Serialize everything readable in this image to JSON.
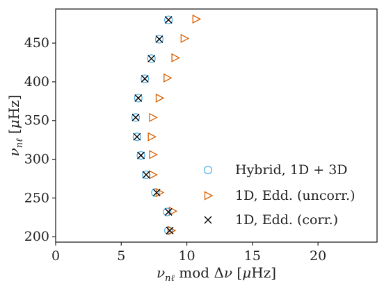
{
  "chart_data": {
    "type": "scatter",
    "xlabel": "νnℓ mod Δν [μHz]",
    "ylabel": "νnℓ [μHz]",
    "xlim": [
      0,
      24.5
    ],
    "ylim": [
      193,
      494
    ],
    "xticks": [
      "0",
      "5",
      "10",
      "15",
      "20"
    ],
    "yticks": [
      "200",
      "250",
      "300",
      "350",
      "400",
      "450"
    ],
    "legend_position": "lower-right",
    "grid": false,
    "series": [
      {
        "name": "Hybrid, 1D + 3D",
        "marker": "circle",
        "color": "#56b4e9",
        "points": [
          [
            8.6,
            208
          ],
          [
            8.5,
            232
          ],
          [
            7.6,
            257
          ],
          [
            6.9,
            280
          ],
          [
            6.5,
            305
          ],
          [
            6.2,
            329
          ],
          [
            6.1,
            354
          ],
          [
            6.3,
            379
          ],
          [
            6.8,
            404
          ],
          [
            7.3,
            430
          ],
          [
            7.9,
            455
          ],
          [
            8.6,
            480
          ]
        ]
      },
      {
        "name": "1D, Edd. (uncorr.)",
        "marker": "triangle-right",
        "color": "#d55e00",
        "points": [
          [
            8.8,
            208
          ],
          [
            8.9,
            233
          ],
          [
            7.9,
            257
          ],
          [
            7.4,
            280
          ],
          [
            7.4,
            306
          ],
          [
            7.3,
            329
          ],
          [
            7.4,
            354
          ],
          [
            7.9,
            379
          ],
          [
            8.5,
            405
          ],
          [
            9.1,
            431
          ],
          [
            9.8,
            456
          ],
          [
            10.7,
            481
          ]
        ]
      },
      {
        "name": "1D, Edd. (corr.)",
        "marker": "x",
        "color": "#000000",
        "points": [
          [
            8.7,
            208
          ],
          [
            8.6,
            232
          ],
          [
            7.7,
            257
          ],
          [
            6.9,
            280
          ],
          [
            6.5,
            305
          ],
          [
            6.2,
            329
          ],
          [
            6.1,
            354
          ],
          [
            6.3,
            379
          ],
          [
            6.8,
            404
          ],
          [
            7.3,
            430
          ],
          [
            7.9,
            455
          ],
          [
            8.6,
            480
          ]
        ]
      }
    ]
  }
}
